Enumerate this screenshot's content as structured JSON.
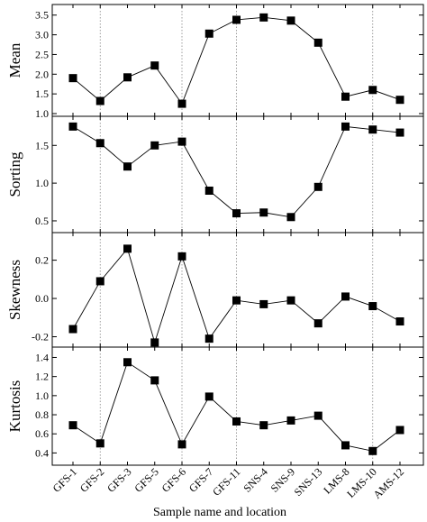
{
  "chart_data": {
    "type": "line",
    "layout": "stacked-panels",
    "categories": [
      "GFS-1",
      "GFS-2",
      "GFS-3",
      "GFS-5",
      "GFS-6",
      "GFS-7",
      "GFS-11",
      "SNS-4",
      "SNS-9",
      "SNS-13",
      "LMS-8",
      "LMS-10",
      "AMS-12"
    ],
    "xlabel": "Sample name and location",
    "marker": "square",
    "line_color": "#000000",
    "marker_color": "#000000",
    "separator_lines_at": [
      "GFS-2",
      "GFS-6",
      "GFS-11",
      "LMS-10"
    ],
    "panels": [
      {
        "ylabel": "Mean",
        "ylim": [
          1.0,
          3.7
        ],
        "ticks": [
          1.0,
          1.5,
          2.0,
          2.5,
          3.0,
          3.5
        ],
        "tick_labels": [
          "1.0",
          "1.5",
          "2.0",
          "2.5",
          "3.0",
          "3.5"
        ],
        "values": [
          1.9,
          1.32,
          1.92,
          2.22,
          1.25,
          3.03,
          3.38,
          3.44,
          3.36,
          2.8,
          1.43,
          1.6,
          1.35
        ]
      },
      {
        "ylabel": "Sorting",
        "ylim": [
          0.38,
          1.85
        ],
        "ticks": [
          0.5,
          1.0,
          1.5
        ],
        "tick_labels": [
          "0.5",
          "1.0",
          "1.5"
        ],
        "values": [
          1.75,
          1.53,
          1.22,
          1.5,
          1.55,
          0.9,
          0.6,
          0.61,
          0.55,
          0.95,
          1.75,
          1.71,
          1.67
        ]
      },
      {
        "ylabel": "Skewness",
        "ylim": [
          -0.24,
          0.33
        ],
        "ticks": [
          -0.2,
          0.0,
          0.2
        ],
        "tick_labels": [
          "-0.2",
          "0.0",
          "0.2"
        ],
        "values": [
          -0.16,
          0.09,
          0.26,
          -0.23,
          0.22,
          -0.21,
          -0.01,
          -0.03,
          -0.01,
          -0.13,
          0.01,
          -0.04,
          -0.12
        ]
      },
      {
        "ylabel": "Kurtosis",
        "ylim": [
          0.3,
          1.48
        ],
        "ticks": [
          0.4,
          0.6,
          0.8,
          1.0,
          1.2,
          1.4
        ],
        "tick_labels": [
          "0.4",
          "0.6",
          "0.8",
          "1.0",
          "1.2",
          "1.4"
        ],
        "values": [
          0.69,
          0.5,
          1.35,
          1.16,
          0.49,
          0.99,
          0.73,
          0.69,
          0.74,
          0.79,
          0.48,
          0.42,
          0.64
        ]
      }
    ]
  }
}
